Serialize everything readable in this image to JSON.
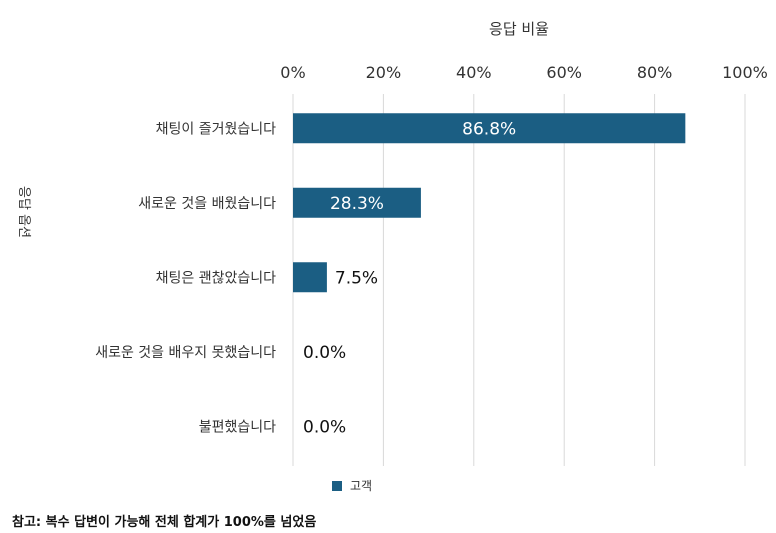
{
  "chart_data": {
    "type": "bar",
    "orientation": "horizontal",
    "title": "",
    "xlabel": "응답 비율",
    "ylabel": "응답 옵션",
    "xlim": [
      0,
      100
    ],
    "x_ticks": [
      "0%",
      "20%",
      "40%",
      "60%",
      "80%",
      "100%"
    ],
    "grid": true,
    "categories": [
      "채팅이 즐거웠습니다",
      "새로운 것을 배웠습니다",
      "채팅은 괜찮았습니다",
      "새로운 것을 배우지 못했습니다",
      "불편했습니다"
    ],
    "series": [
      {
        "name": "고객",
        "values": [
          86.8,
          28.3,
          7.5,
          0.0,
          0.0
        ],
        "labels": [
          "86.8%",
          "28.3%",
          "7.5%",
          "0.0%",
          "0.0%"
        ]
      }
    ],
    "bar_color": "#1b5e83",
    "legend_position": "bottom"
  },
  "note": "참고: 복수 답변이 가능해 전체 합계가 100%를 넘었음"
}
